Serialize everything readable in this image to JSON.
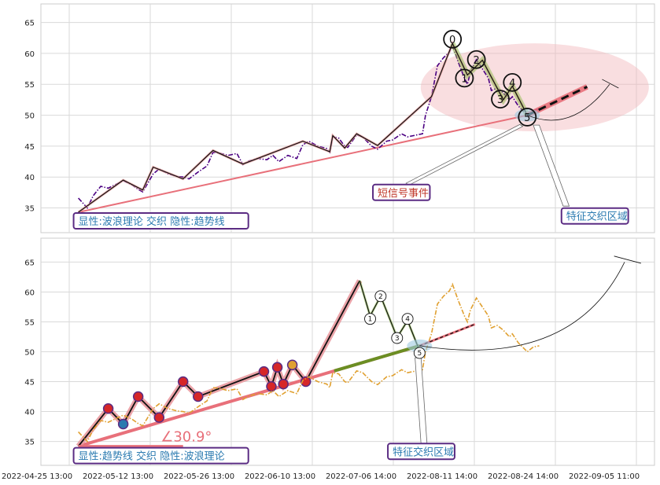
{
  "chart_data": [
    {
      "type": "line",
      "panel": "top",
      "ylim": [
        31,
        68
      ],
      "y_ticks": [
        35,
        40,
        45,
        50,
        55,
        60,
        65
      ],
      "x_ticks": [
        "2022-04-25 13:00",
        "2022-05-12 13:00",
        "2022-05-26 13:00",
        "2022-06-10 13:00",
        "2022-07-06 14:00",
        "2022-08-11 14:00",
        "2022-08-24 14:00",
        "2022-09-05 11:00"
      ],
      "price_line": [
        [
          1,
          36.6
        ],
        [
          1.6,
          35
        ],
        [
          2,
          37
        ],
        [
          2.5,
          38.5
        ],
        [
          3,
          38.2
        ],
        [
          4,
          39.4
        ],
        [
          4.6,
          38.7
        ],
        [
          5,
          38
        ],
        [
          5.3,
          37.6
        ],
        [
          6,
          40.5
        ],
        [
          6.4,
          41.3
        ],
        [
          7,
          40.5
        ],
        [
          7.6,
          40.1
        ],
        [
          8,
          40
        ],
        [
          8.4,
          39.7
        ],
        [
          9,
          40.8
        ],
        [
          9.6,
          41.8
        ],
        [
          10,
          44
        ],
        [
          10.4,
          43.9
        ],
        [
          11,
          43.5
        ],
        [
          11.6,
          43.8
        ],
        [
          12,
          42
        ],
        [
          12.4,
          42.6
        ],
        [
          13,
          43
        ],
        [
          13.6,
          42.8
        ],
        [
          14,
          43.5
        ],
        [
          14.4,
          42.5
        ],
        [
          15,
          43.5
        ],
        [
          15.6,
          43
        ],
        [
          16,
          45.2
        ],
        [
          16.4,
          45.8
        ],
        [
          17,
          45
        ],
        [
          17.6,
          44.6
        ],
        [
          17.8,
          44
        ],
        [
          18,
          46.5
        ],
        [
          18.4,
          46.3
        ],
        [
          18.8,
          45
        ],
        [
          19,
          44.8
        ],
        [
          19.6,
          46.8
        ],
        [
          20,
          46.5
        ],
        [
          20.6,
          45
        ],
        [
          21,
          44.5
        ],
        [
          21.6,
          45.8
        ],
        [
          22,
          46
        ],
        [
          22.6,
          47
        ],
        [
          23,
          46.5
        ],
        [
          23.6,
          46.8
        ],
        [
          24,
          47
        ],
        [
          24.2,
          50
        ],
        [
          24.6,
          53
        ],
        [
          25,
          58
        ],
        [
          25.4,
          59.3
        ],
        [
          25.8,
          60.2
        ],
        [
          26,
          61.3
        ],
        [
          26.4,
          58.5
        ],
        [
          26.8,
          56
        ],
        [
          27,
          55
        ],
        [
          27.2,
          57
        ],
        [
          27.6,
          59
        ],
        [
          28,
          57.5
        ],
        [
          28.4,
          56
        ],
        [
          28.6,
          54
        ],
        [
          29,
          54.4
        ],
        [
          29.4,
          53.6
        ],
        [
          29.8,
          52.5
        ],
        [
          30,
          53
        ],
        [
          30.4,
          51.5
        ],
        [
          30.8,
          50.5
        ],
        [
          31,
          50
        ],
        [
          31.4,
          50.8
        ],
        [
          31.8,
          51
        ]
      ],
      "wave_line": [
        [
          1,
          34.3
        ],
        [
          4,
          39.5
        ],
        [
          5.3,
          37.9
        ],
        [
          6,
          41.6
        ],
        [
          8,
          39.7
        ],
        [
          10,
          44.3
        ],
        [
          12,
          42.1
        ],
        [
          16,
          45.8
        ],
        [
          17.8,
          44.1
        ],
        [
          18,
          46.7
        ],
        [
          18.8,
          44.7
        ],
        [
          19.6,
          47
        ],
        [
          21,
          45.1
        ],
        [
          24.6,
          53
        ],
        [
          26,
          61.6
        ],
        [
          27,
          56.5
        ],
        [
          28,
          58.9
        ],
        [
          29.4,
          52.5
        ],
        [
          30,
          54.7
        ],
        [
          31,
          50
        ]
      ],
      "trend_line": [
        [
          1,
          34.3
        ],
        [
          31,
          50
        ]
      ],
      "forecast_line": [
        [
          31,
          50
        ],
        [
          35,
          54.6
        ]
      ],
      "wave_labels": [
        {
          "label": "0",
          "x": 26,
          "y": 62.3
        },
        {
          "label": "1",
          "x": 26.8,
          "y": 56
        },
        {
          "label": "2",
          "x": 27.6,
          "y": 59
        },
        {
          "label": "3",
          "x": 29.2,
          "y": 52.6
        },
        {
          "label": "4",
          "x": 30,
          "y": 55.3
        },
        {
          "label": "5",
          "x": 31,
          "y": 49.7
        }
      ],
      "annotations": [
        {
          "text": "短信号事件",
          "x": 21,
          "y": 37,
          "color": "#c0392b"
        },
        {
          "text": "特征交织区域",
          "x": 33.6,
          "y": 33.2,
          "color": "#2a7ab0"
        },
        {
          "text": "显性:波浪理论 交织 隐性:趋势线",
          "x": 1,
          "y": 32.4,
          "color": "#2a7ab0"
        }
      ]
    },
    {
      "type": "line",
      "panel": "bottom",
      "ylim": [
        31,
        69
      ],
      "y_ticks": [
        35,
        40,
        45,
        50,
        55,
        60,
        65
      ],
      "x_ticks": [
        "2022-04-25 13:00",
        "2022-05-12 13:00",
        "2022-05-26 13:00",
        "2022-06-10 13:00",
        "2022-07-06 14:00",
        "2022-08-11 14:00",
        "2022-08-24 14:00",
        "2022-09-05 11:00"
      ],
      "price_line": [
        [
          1,
          36.6
        ],
        [
          1.6,
          35
        ],
        [
          2,
          37
        ],
        [
          2.5,
          38.5
        ],
        [
          3,
          38.2
        ],
        [
          4,
          39.4
        ],
        [
          4.6,
          38.7
        ],
        [
          5,
          38
        ],
        [
          5.3,
          37.6
        ],
        [
          6,
          40.5
        ],
        [
          6.4,
          41.3
        ],
        [
          7,
          40.5
        ],
        [
          7.6,
          40.1
        ],
        [
          8,
          40
        ],
        [
          8.4,
          39.7
        ],
        [
          9,
          40.8
        ],
        [
          9.6,
          41.8
        ],
        [
          10,
          44
        ],
        [
          10.4,
          43.9
        ],
        [
          11,
          43.5
        ],
        [
          11.6,
          43.8
        ],
        [
          12,
          42
        ],
        [
          12.4,
          42.6
        ],
        [
          13,
          43
        ],
        [
          13.6,
          42.8
        ],
        [
          14,
          43.5
        ],
        [
          14.4,
          42.5
        ],
        [
          15,
          43.5
        ],
        [
          15.6,
          43
        ],
        [
          16,
          45.2
        ],
        [
          16.4,
          45.8
        ],
        [
          17,
          45
        ],
        [
          17.6,
          44.6
        ],
        [
          17.8,
          44
        ],
        [
          18,
          46.5
        ],
        [
          18.4,
          46.3
        ],
        [
          18.8,
          45
        ],
        [
          19,
          44.8
        ],
        [
          19.6,
          46.8
        ],
        [
          20,
          46.5
        ],
        [
          20.6,
          45
        ],
        [
          21,
          44.5
        ],
        [
          21.6,
          45.8
        ],
        [
          22,
          46
        ],
        [
          22.6,
          47
        ],
        [
          23,
          46.5
        ],
        [
          23.6,
          46.8
        ],
        [
          24,
          47
        ],
        [
          24.2,
          50
        ],
        [
          24.6,
          53
        ],
        [
          25,
          58
        ],
        [
          25.4,
          59.3
        ],
        [
          25.8,
          60.2
        ],
        [
          26,
          61.3
        ],
        [
          26.4,
          58.5
        ],
        [
          26.8,
          56
        ],
        [
          27,
          55
        ],
        [
          27.2,
          57
        ],
        [
          27.6,
          59
        ],
        [
          28,
          57.5
        ],
        [
          28.4,
          56
        ],
        [
          28.6,
          54
        ],
        [
          29,
          54.4
        ],
        [
          29.4,
          53.6
        ],
        [
          29.8,
          52.5
        ],
        [
          30,
          53
        ],
        [
          30.4,
          51.5
        ],
        [
          30.8,
          50.5
        ],
        [
          31,
          50
        ],
        [
          31.4,
          50.8
        ],
        [
          31.8,
          51
        ]
      ],
      "trend_wave": [
        [
          1,
          34.2
        ],
        [
          3,
          40.5
        ],
        [
          4,
          37.9
        ],
        [
          5,
          42.5
        ],
        [
          6.4,
          39
        ],
        [
          8,
          45
        ],
        [
          9,
          42.5
        ],
        [
          13.4,
          46.7
        ],
        [
          13.9,
          44.2
        ],
        [
          14.3,
          47.4
        ],
        [
          14.7,
          44.6
        ],
        [
          15.3,
          47.8
        ],
        [
          16.2,
          45
        ],
        [
          19.8,
          61.9
        ]
      ],
      "wave_line": [
        [
          19.8,
          61.9
        ],
        [
          20.5,
          56
        ],
        [
          21.2,
          59.3
        ],
        [
          22.3,
          52.4
        ],
        [
          23,
          55.2
        ],
        [
          23.8,
          50.2
        ]
      ],
      "trend_line": [
        [
          1,
          34.2
        ],
        [
          23.8,
          51
        ]
      ],
      "forecast_line": [
        [
          23.8,
          51
        ],
        [
          27.5,
          54.6
        ]
      ],
      "wave_labels": [
        {
          "label": "1",
          "x": 20.5,
          "y": 55.5
        },
        {
          "label": "2",
          "x": 21.2,
          "y": 59.3
        },
        {
          "label": "3",
          "x": 22.3,
          "y": 52.3
        },
        {
          "label": "4",
          "x": 23,
          "y": 55.5
        },
        {
          "label": "5",
          "x": 23.8,
          "y": 49.8
        }
      ],
      "angle_label": "∠30.9°",
      "annotations": [
        {
          "text": "特征交织区域",
          "x": 22,
          "y": 32.8,
          "color": "#2a7ab0"
        },
        {
          "text": "显性:趋势线 交织 隐性:波浪理论",
          "x": 1,
          "y": 32.1,
          "color": "#2a7ab0"
        }
      ]
    }
  ]
}
